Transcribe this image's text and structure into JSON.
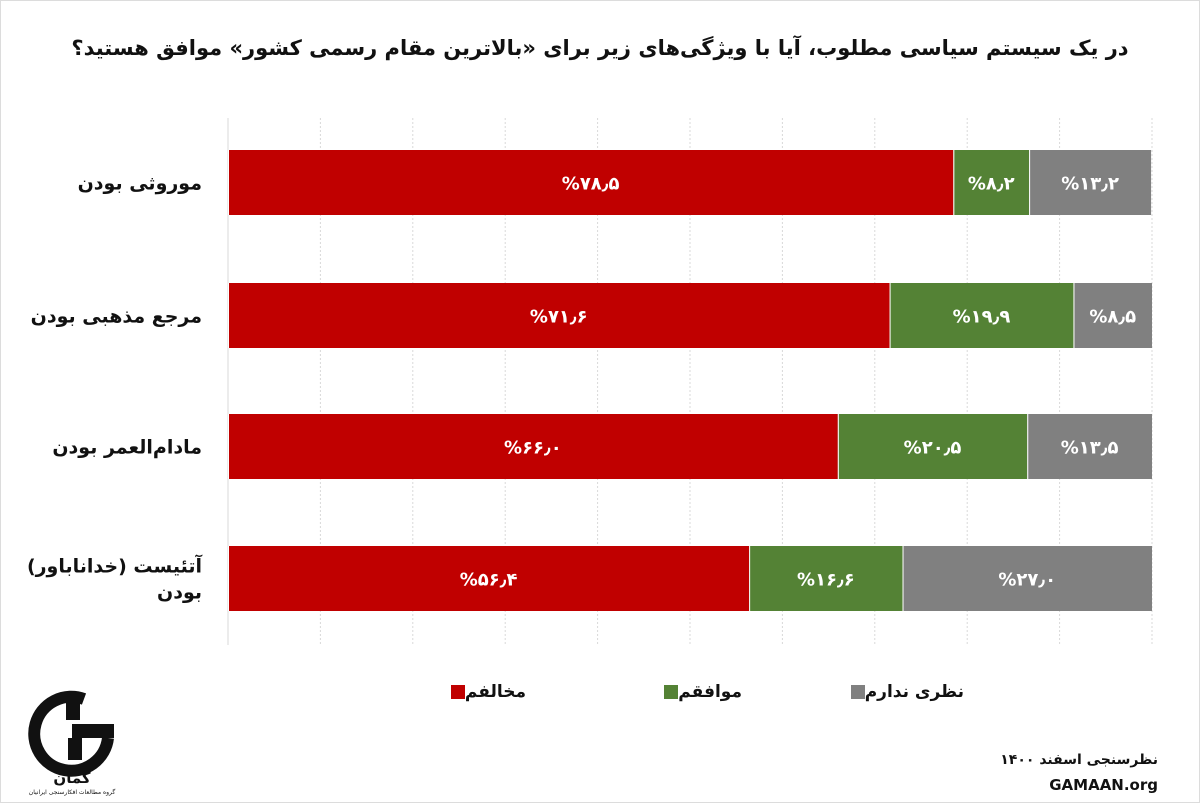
{
  "title": "در یک سیستم سیاسی مطلوب، آیا با ویژگی‌های زیر برای «بالاترین مقام رسمی کشور» موافق هستید؟",
  "chart_data": {
    "type": "bar",
    "orientation": "horizontal",
    "stacked": true,
    "title": "در یک سیستم سیاسی مطلوب، آیا با ویژگی‌های زیر برای «بالاترین مقام رسمی کشور» موافق هستید؟",
    "categories": [
      "موروثی بودن",
      "مرجع مذهبی بودن",
      "مادام‌العمر بودن",
      "آتئیست (خداناباور) بودن"
    ],
    "series": [
      {
        "name": "مخالفم",
        "color": "#c00000",
        "values": [
          78.5,
          71.6,
          66.0,
          56.4
        ],
        "labels": [
          "%۷۸٫۵",
          "%۷۱٫۶",
          "%۶۶٫۰",
          "%۵۶٫۴"
        ]
      },
      {
        "name": "موافقم",
        "color": "#548235",
        "values": [
          8.2,
          19.9,
          20.5,
          16.6
        ],
        "labels": [
          "%۸٫۲",
          "%۱۹٫۹",
          "%۲۰٫۵",
          "%۱۶٫۶"
        ]
      },
      {
        "name": "نظری ندارم",
        "color": "#808080",
        "values": [
          13.2,
          8.5,
          13.5,
          27.0
        ],
        "labels": [
          "%۱۳٫۲",
          "%۸٫۵",
          "%۱۳٫۵",
          "%۲۷٫۰"
        ]
      }
    ],
    "xlim": [
      0,
      100
    ],
    "grid": true,
    "legend_position": "bottom"
  },
  "footer": {
    "survey_line": "نظرسنجی اسفند ۱۴۰۰",
    "site": "GAMAAN.org"
  },
  "logo": {
    "name": "گمان",
    "subtitle": "گروه مطالعات افکارسنجی ایرانیان"
  }
}
